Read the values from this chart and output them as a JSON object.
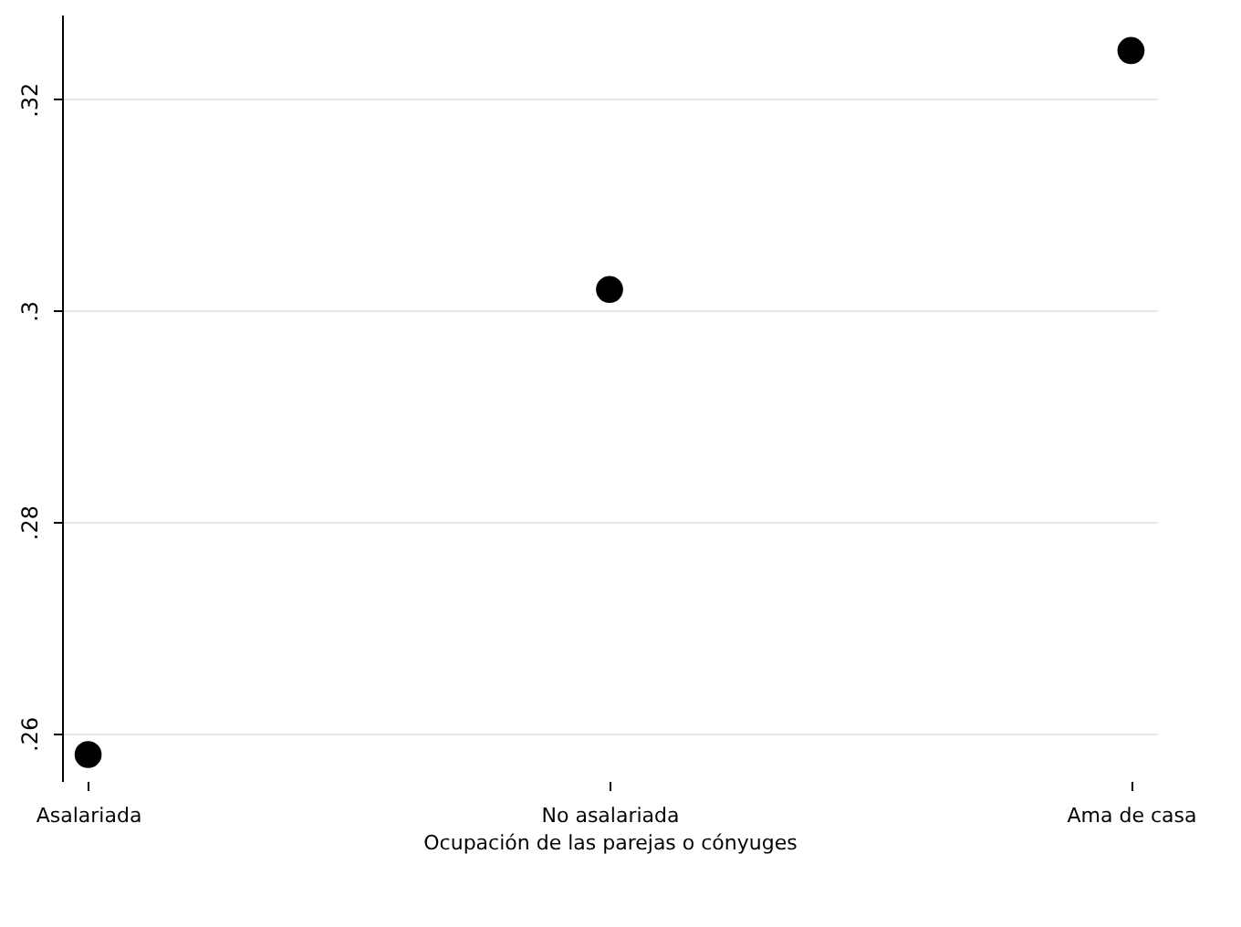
{
  "chart_data": {
    "type": "scatter",
    "xlabel": "Ocupación de las parejas o cónyuges",
    "categories": [
      "Asalariada",
      "No asalariada",
      "Ama de casa"
    ],
    "series": [
      {
        "color": "#000000",
        "values": [
          0.258,
          0.302,
          0.3246
        ]
      }
    ],
    "ylim": [
      0.2555,
      0.328
    ],
    "yticks": [
      {
        "value": 0.26,
        "label": ".26"
      },
      {
        "value": 0.28,
        "label": ".28"
      },
      {
        "value": 0.3,
        "label": ".3"
      },
      {
        "value": 0.32,
        "label": ".32"
      }
    ],
    "grid": "y",
    "marker": "circle",
    "legend": false
  }
}
